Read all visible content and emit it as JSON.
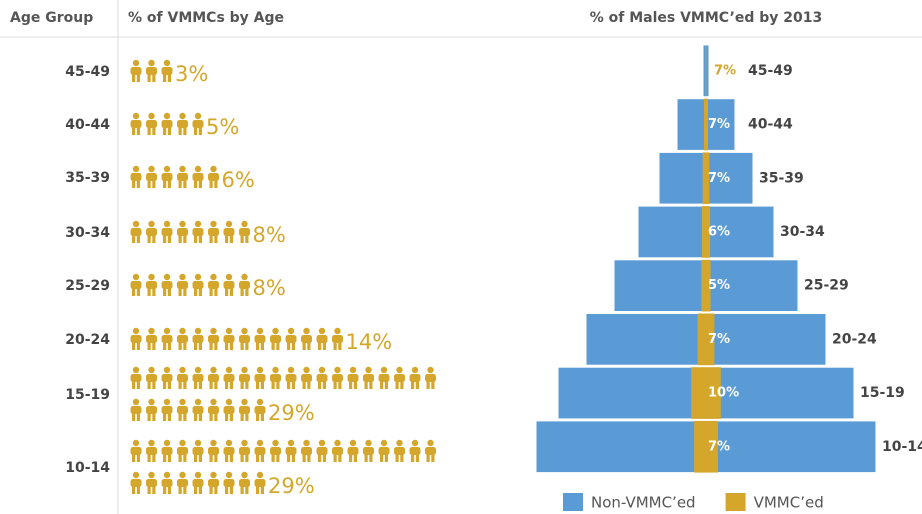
{
  "chart_data": [
    {
      "type": "pictogram",
      "category_label": "Age Group",
      "title": "% of VMMCs by Age",
      "categories": [
        "45-49",
        "40-44",
        "35-39",
        "30-34",
        "25-29",
        "20-24",
        "15-19",
        "10-14"
      ],
      "values": [
        3,
        5,
        6,
        8,
        8,
        14,
        29,
        29
      ],
      "value_labels": [
        "3%",
        "5%",
        "6%",
        "8%",
        "8%",
        "14%",
        "29%",
        "29%"
      ],
      "color": "#d4a72c"
    },
    {
      "type": "pyramid",
      "title": "% of Males VMMC’ed by 2013",
      "categories": [
        "45-49",
        "40-44",
        "35-39",
        "30-34",
        "25-29",
        "20-24",
        "15-19",
        "10-14"
      ],
      "series": [
        {
          "name": "Non-VMMC’ed",
          "color": "#5b9bd5",
          "values": [
            3,
            29,
            47,
            68,
            92,
            120,
            148,
            170
          ]
        },
        {
          "name": "VMMC’ed",
          "color": "#d4a72c",
          "values": [
            7,
            7,
            7,
            6,
            5,
            7,
            10,
            7
          ],
          "value_labels": [
            "7%",
            "7%",
            "7%",
            "6%",
            "5%",
            "7%",
            "10%",
            "7%"
          ]
        }
      ]
    }
  ]
}
